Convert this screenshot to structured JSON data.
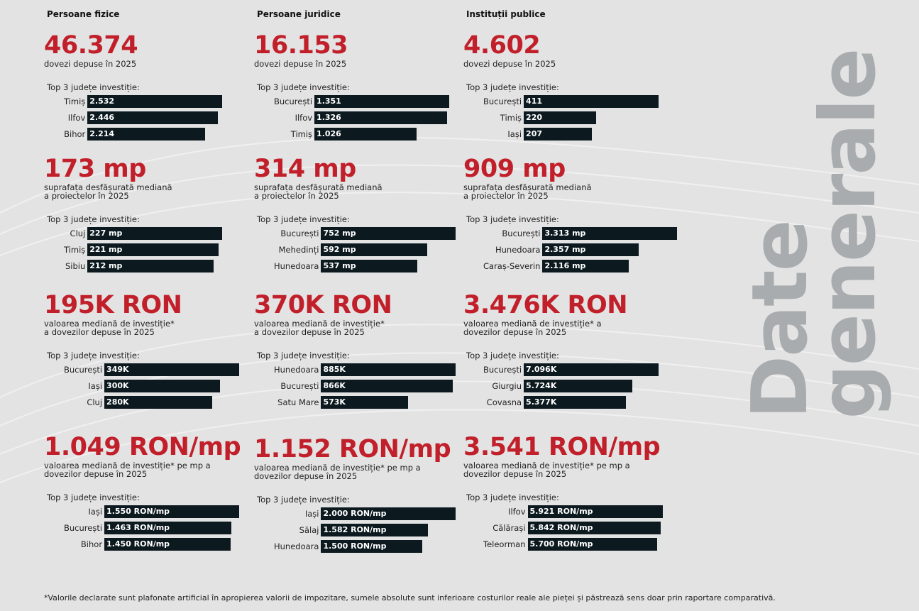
{
  "columns": [
    {
      "heading": "Persoane fizice",
      "sections": [
        {
          "big": "46.374",
          "desc": [
            "dovezi depuse în 2025"
          ],
          "items": [
            {
              "county": "Timiș",
              "value": 2532,
              "label": "2.532"
            },
            {
              "county": "Ilfov",
              "value": 2446,
              "label": "2.446"
            },
            {
              "county": "Bihor",
              "value": 2214,
              "label": "2.214"
            }
          ]
        },
        {
          "big": "173 mp",
          "desc": [
            "suprafața desfășurată mediană",
            "a proiectelor în 2025"
          ],
          "items": [
            {
              "county": "Cluj",
              "value": 227,
              "label": "227 mp"
            },
            {
              "county": "Timiș",
              "value": 221,
              "label": "221 mp"
            },
            {
              "county": "Sibiu",
              "value": 212,
              "label": "212 mp"
            }
          ]
        },
        {
          "big": "195K RON",
          "desc": [
            "valoarea mediană de investiție*",
            "a dovezilor depuse în 2025"
          ],
          "items": [
            {
              "county": "București",
              "value": 349,
              "label": "349K"
            },
            {
              "county": "Iași",
              "value": 300,
              "label": "300K"
            },
            {
              "county": "Cluj",
              "value": 280,
              "label": "280K"
            }
          ]
        },
        {
          "big": "1.049 RON/mp",
          "desc": [
            "valoarea mediană de investiție* pe mp a",
            "dovezilor depuse în 2025"
          ],
          "items": [
            {
              "county": "Iași",
              "value": 1550,
              "label": "1.550 RON/mp"
            },
            {
              "county": "București",
              "value": 1463,
              "label": "1.463 RON/mp"
            },
            {
              "county": "Bihor",
              "value": 1450,
              "label": "1.450 RON/mp"
            }
          ]
        }
      ]
    },
    {
      "heading": "Persoane juridice",
      "sections": [
        {
          "big": "16.153",
          "desc": [
            "dovezi depuse în 2025"
          ],
          "items": [
            {
              "county": "București",
              "value": 1351,
              "label": "1.351"
            },
            {
              "county": "Ilfov",
              "value": 1326,
              "label": "1.326"
            },
            {
              "county": "Timiș",
              "value": 1026,
              "label": "1.026"
            }
          ]
        },
        {
          "big": "314 mp",
          "desc": [
            "suprafața desfășurată mediană",
            "a proiectelor în 2025"
          ],
          "items": [
            {
              "county": "București",
              "value": 752,
              "label": "752 mp"
            },
            {
              "county": "Mehedinți",
              "value": 592,
              "label": "592 mp"
            },
            {
              "county": "Hunedoara",
              "value": 537,
              "label": "537 mp"
            }
          ]
        },
        {
          "big": "370K RON",
          "desc": [
            "valoarea mediană de investiție*",
            "a dovezilor depuse în 2025"
          ],
          "items": [
            {
              "county": "Hunedoara",
              "value": 885,
              "label": "885K"
            },
            {
              "county": "București",
              "value": 866,
              "label": "866K"
            },
            {
              "county": "Satu Mare",
              "value": 573,
              "label": "573K"
            }
          ]
        },
        {
          "big": "1.152 RON/mp",
          "desc": [
            "valoarea mediană de investiție* pe mp a",
            "dovezilor depuse în 2025"
          ],
          "items": [
            {
              "county": "Iași",
              "value": 2000,
              "label": "2.000 RON/mp"
            },
            {
              "county": "Sălaj",
              "value": 1582,
              "label": "1.582 RON/mp"
            },
            {
              "county": "Hunedoara",
              "value": 1500,
              "label": "1.500 RON/mp"
            }
          ]
        }
      ]
    },
    {
      "heading": "Instituții publice",
      "sections": [
        {
          "big": "4.602",
          "desc": [
            "dovezi depuse în 2025"
          ],
          "items": [
            {
              "county": "București",
              "value": 411,
              "label": "411"
            },
            {
              "county": "Timiș",
              "value": 220,
              "label": "220"
            },
            {
              "county": "Iași",
              "value": 207,
              "label": "207"
            }
          ]
        },
        {
          "big": "909 mp",
          "desc": [
            "suprafața desfășurată mediană",
            "a proiectelor în 2025"
          ],
          "items": [
            {
              "county": "București",
              "value": 3313,
              "label": "3.313 mp"
            },
            {
              "county": "Hunedoara",
              "value": 2357,
              "label": "2.357 mp"
            },
            {
              "county": "Caraș-Severin",
              "value": 2116,
              "label": "2.116 mp"
            }
          ]
        },
        {
          "big": "3.476K RON",
          "desc": [
            "valoarea mediană de investiție* a",
            "dovezilor depuse în 2025"
          ],
          "items": [
            {
              "county": "București",
              "value": 7096,
              "label": "7.096K"
            },
            {
              "county": "Giurgiu",
              "value": 5724,
              "label": "5.724K"
            },
            {
              "county": "Covasna",
              "value": 5377,
              "label": "5.377K"
            }
          ]
        },
        {
          "big": "3.541 RON/mp",
          "desc": [
            "valoarea mediană de investiție* pe mp a",
            "dovezilor depuse în 2025"
          ],
          "items": [
            {
              "county": "Ilfov",
              "value": 5921,
              "label": "5.921 RON/mp"
            },
            {
              "county": "Călărași",
              "value": 5842,
              "label": "5.842 RON/mp"
            },
            {
              "county": "Teleorman",
              "value": 5700,
              "label": "5.700 RON/mp"
            }
          ]
        }
      ]
    }
  ],
  "top3_label": "Top 3 județe investiție:",
  "title": [
    "Date",
    "generale"
  ],
  "footnote": "*Valorile declarate sunt plafonate artificial în apropierea valorii de impozitare, sumele absolute sunt inferioare costurilor reale ale pieței și păstrează sens doar prin raportare comparativă."
}
